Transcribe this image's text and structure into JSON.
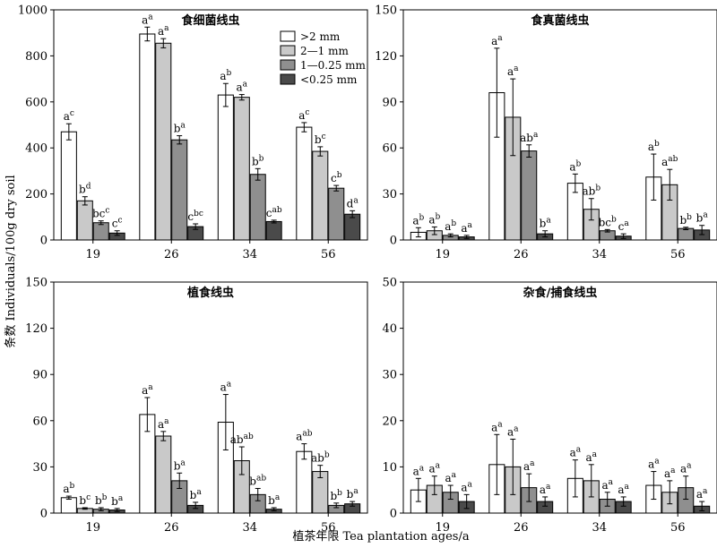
{
  "figure": {
    "ylabel": "条数 Individuals/100g dry soil",
    "xlabel": "植茶年限 Tea plantation ages/a"
  },
  "series_colors": [
    "#ffffff",
    "#c9c9c9",
    "#8f8f8f",
    "#4a4a4a"
  ],
  "chart_data": [
    {
      "type": "bar",
      "title": "食细菌线虫",
      "categories": [
        "19",
        "26",
        "34",
        "56"
      ],
      "ylim": [
        0,
        1000
      ],
      "yticks": [
        0,
        200,
        400,
        600,
        800,
        1000
      ],
      "legend_position": "top-right",
      "series": [
        {
          "name": ">2 mm",
          "values": [
            470,
            895,
            630,
            490
          ],
          "errors": [
            35,
            30,
            50,
            20
          ],
          "labels": [
            [
              "a",
              "c"
            ],
            [
              "a",
              "a"
            ],
            [
              "a",
              "b"
            ],
            [
              "a",
              "c"
            ]
          ]
        },
        {
          "name": "2—1 mm",
          "values": [
            170,
            855,
            620,
            385
          ],
          "errors": [
            18,
            20,
            12,
            20
          ],
          "labels": [
            [
              "b",
              "d"
            ],
            [
              "a",
              "a"
            ],
            [
              "a",
              "a"
            ],
            [
              "b",
              "c"
            ]
          ]
        },
        {
          "name": "1—0.25 mm",
          "values": [
            75,
            435,
            285,
            225
          ],
          "errors": [
            8,
            18,
            25,
            12
          ],
          "labels": [
            [
              "bc",
              "c"
            ],
            [
              "b",
              "a"
            ],
            [
              "b",
              "b"
            ],
            [
              "c",
              "b"
            ]
          ]
        },
        {
          "name": "<0.25 mm",
          "values": [
            30,
            58,
            80,
            112
          ],
          "errors": [
            10,
            12,
            6,
            15
          ],
          "labels": [
            [
              "c",
              "c"
            ],
            [
              "c",
              "bc"
            ],
            [
              "c",
              "ab"
            ],
            [
              "d",
              "a"
            ]
          ]
        }
      ]
    },
    {
      "type": "bar",
      "title": "食真菌线虫",
      "categories": [
        "19",
        "26",
        "34",
        "56"
      ],
      "ylim": [
        0,
        150
      ],
      "yticks": [
        0,
        30,
        60,
        90,
        120,
        150
      ],
      "series": [
        {
          "name": ">2 mm",
          "values": [
            5,
            96,
            37,
            41
          ],
          "errors": [
            3,
            29,
            6,
            15
          ],
          "labels": [
            [
              "a",
              "b"
            ],
            [
              "a",
              "a"
            ],
            [
              "a",
              "b"
            ],
            [
              "a",
              "b"
            ]
          ]
        },
        {
          "name": "2—1 mm",
          "values": [
            6,
            80,
            20,
            36
          ],
          "errors": [
            2.5,
            25,
            7,
            10
          ],
          "labels": [
            [
              "a",
              "b"
            ],
            [
              "a",
              "a"
            ],
            [
              "ab",
              "b"
            ],
            [
              "a",
              "ab"
            ]
          ]
        },
        {
          "name": "1—0.25 mm",
          "values": [
            3,
            58,
            6,
            7.5
          ],
          "errors": [
            1,
            4,
            0.8,
            0.8
          ],
          "labels": [
            [
              "a",
              "b"
            ],
            [
              "ab",
              "a"
            ],
            [
              "bc",
              "b"
            ],
            [
              "b",
              "b"
            ]
          ]
        },
        {
          "name": "<0.25 mm",
          "values": [
            2,
            4,
            2.5,
            6.5
          ],
          "errors": [
            1,
            2,
            1.5,
            3
          ],
          "labels": [
            [
              "a",
              "a"
            ],
            [
              "b",
              "a"
            ],
            [
              "c",
              "a"
            ],
            [
              "b",
              "a"
            ]
          ]
        }
      ]
    },
    {
      "type": "bar",
      "title": "植食线虫",
      "categories": [
        "19",
        "26",
        "34",
        "56"
      ],
      "ylim": [
        0,
        150
      ],
      "yticks": [
        0,
        30,
        60,
        90,
        120,
        150
      ],
      "series": [
        {
          "name": ">2 mm",
          "values": [
            10,
            64,
            59,
            40
          ],
          "errors": [
            1,
            11,
            18,
            5
          ],
          "labels": [
            [
              "a",
              "b"
            ],
            [
              "a",
              "a"
            ],
            [
              "a",
              "a"
            ],
            [
              "a",
              "ab"
            ]
          ]
        },
        {
          "name": "2—1 mm",
          "values": [
            3,
            50,
            34,
            27
          ],
          "errors": [
            0.5,
            3,
            9,
            4
          ],
          "labels": [
            [
              "b",
              "c"
            ],
            [
              "a",
              "a"
            ],
            [
              "ab",
              "ab"
            ],
            [
              "ab",
              "b"
            ]
          ]
        },
        {
          "name": "1—0.25 mm",
          "values": [
            2.5,
            21,
            12,
            5
          ],
          "errors": [
            1,
            5,
            4,
            1.5
          ],
          "labels": [
            [
              "b",
              "b"
            ],
            [
              "b",
              "a"
            ],
            [
              "b",
              "ab"
            ],
            [
              "b",
              "b"
            ]
          ]
        },
        {
          "name": "<0.25 mm",
          "values": [
            2,
            5,
            2.5,
            6
          ],
          "errors": [
            1,
            2,
            1,
            1.5
          ],
          "labels": [
            [
              "b",
              "a"
            ],
            [
              "b",
              "a"
            ],
            [
              "b",
              "a"
            ],
            [
              "b",
              "a"
            ]
          ]
        }
      ]
    },
    {
      "type": "bar",
      "title": "杂食/捕食线虫",
      "categories": [
        "19",
        "26",
        "34",
        "56"
      ],
      "ylim": [
        0,
        50
      ],
      "yticks": [
        0,
        10,
        20,
        30,
        40,
        50
      ],
      "series": [
        {
          "name": ">2 mm",
          "values": [
            5,
            10.5,
            7.5,
            6
          ],
          "errors": [
            2.5,
            6.5,
            4,
            3
          ],
          "labels": [
            [
              "a",
              "a"
            ],
            [
              "a",
              "a"
            ],
            [
              "a",
              "a"
            ],
            [
              "a",
              "a"
            ]
          ]
        },
        {
          "name": "2—1 mm",
          "values": [
            6,
            10,
            7,
            4.5
          ],
          "errors": [
            2,
            6,
            3.5,
            2.5
          ],
          "labels": [
            [
              "a",
              "a"
            ],
            [
              "a",
              "a"
            ],
            [
              "a",
              "a"
            ],
            [
              "a",
              "a"
            ]
          ]
        },
        {
          "name": "1—0.25 mm",
          "values": [
            4.5,
            5.5,
            3,
            5.5
          ],
          "errors": [
            1.5,
            3,
            1.5,
            2.5
          ],
          "labels": [
            [
              "a",
              "a"
            ],
            [
              "a",
              "a"
            ],
            [
              "a",
              "a"
            ],
            [
              "a",
              "a"
            ]
          ]
        },
        {
          "name": "<0.25 mm",
          "values": [
            2.5,
            2.5,
            2.5,
            1.5
          ],
          "errors": [
            1.5,
            1,
            1,
            1
          ],
          "labels": [
            [
              "a",
              "a"
            ],
            [
              "a",
              "a"
            ],
            [
              "a",
              "a"
            ],
            [
              "a",
              "a"
            ]
          ]
        }
      ]
    }
  ]
}
